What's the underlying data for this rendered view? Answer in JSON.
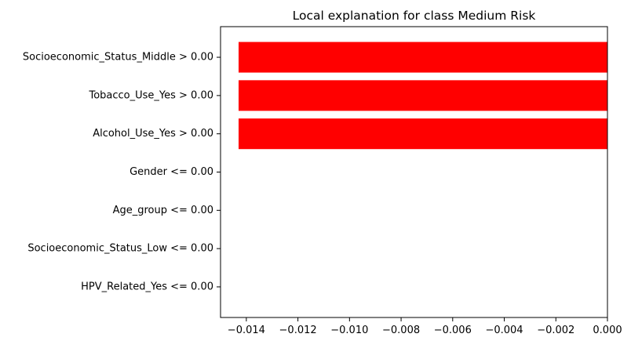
{
  "chart_data": {
    "type": "bar",
    "orientation": "horizontal",
    "title": "Local explanation for class Medium Risk",
    "xlabel": "",
    "ylabel": "",
    "categories": [
      "HPV_Related_Yes <= 0.00",
      "Socioeconomic_Status_Low <= 0.00",
      "Age_group <= 0.00",
      "Gender <= 0.00",
      "Alcohol_Use_Yes > 0.00",
      "Tobacco_Use_Yes > 0.00",
      "Socioeconomic_Status_Middle > 0.00"
    ],
    "values": [
      0.0,
      0.0,
      0.0,
      0.0,
      -0.0143,
      -0.0143,
      -0.0143
    ],
    "xlim": [
      -0.015,
      0.0
    ],
    "xticks": [
      -0.014,
      -0.012,
      -0.01,
      -0.008,
      -0.006,
      -0.004,
      -0.002,
      0.0
    ],
    "xtick_labels": [
      "−0.014",
      "−0.012",
      "−0.010",
      "−0.008",
      "−0.006",
      "−0.004",
      "−0.002",
      "0.000"
    ],
    "bar_color": "#ff0000",
    "grid": false,
    "legend": "none"
  }
}
